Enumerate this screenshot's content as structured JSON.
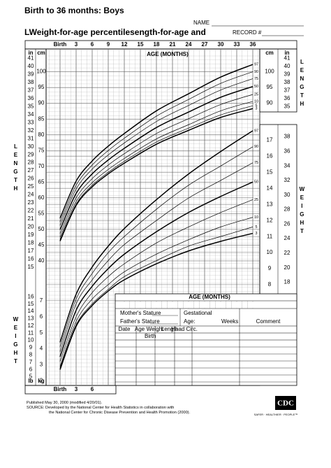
{
  "header": {
    "title": "Birth to 36 months: Boys",
    "subtitle": "LWeight-for-age percentilesength-for-age and",
    "name_label": "NAME",
    "record_label": "RECORD #"
  },
  "side_labels": {
    "length": "LENGTH",
    "weight": "WEIGHT"
  },
  "chart_data": [
    {
      "type": "line",
      "xlabel": "AGE (MONTHS)",
      "ylabel": "cm",
      "y2label": "in",
      "color": "#000000",
      "x": [
        0,
        3,
        6,
        9,
        12,
        18,
        24,
        30,
        36
      ],
      "xlim": [
        0,
        36
      ],
      "xticks": [
        {
          "value": 0,
          "label": "Birth"
        },
        3,
        6,
        9,
        12,
        15,
        18,
        21,
        24,
        27,
        30,
        33,
        36
      ],
      "ylim": [
        36,
        105
      ],
      "yticks": [
        40,
        45,
        50,
        55,
        60,
        65,
        70,
        75,
        80,
        85,
        90,
        95,
        100
      ],
      "y2lim": [
        14.2,
        41.3
      ],
      "y2ticks": [
        15,
        16,
        17,
        18,
        19,
        20,
        21,
        22,
        23,
        24,
        25,
        26,
        27,
        28,
        29,
        30,
        31,
        32,
        33,
        34,
        35,
        36,
        37,
        38,
        39,
        40,
        41
      ],
      "series": [
        {
          "name": "97",
          "values": [
            53.5,
            65.3,
            71.7,
            76.4,
            80.4,
            87.6,
            93.0,
            98.3,
            102.3
          ]
        },
        {
          "name": "90",
          "values": [
            52.3,
            64.0,
            70.4,
            75.0,
            78.9,
            85.9,
            91.2,
            96.3,
            100.0
          ]
        },
        {
          "name": "75",
          "values": [
            51.2,
            62.8,
            69.1,
            73.6,
            77.4,
            84.2,
            89.3,
            94.2,
            97.8
          ]
        },
        {
          "name": "50",
          "values": [
            49.9,
            61.4,
            67.6,
            72.0,
            75.7,
            82.3,
            87.2,
            91.9,
            95.3
          ]
        },
        {
          "name": "25",
          "values": [
            48.6,
            60.0,
            66.1,
            70.4,
            74.0,
            80.4,
            85.1,
            89.6,
            92.8
          ]
        },
        {
          "name": "10",
          "values": [
            47.5,
            58.8,
            64.8,
            69.0,
            72.5,
            78.7,
            83.2,
            87.6,
            90.6
          ]
        },
        {
          "name": "5",
          "values": [
            46.8,
            58.0,
            64.0,
            68.1,
            71.6,
            77.7,
            82.1,
            86.3,
            89.2
          ]
        },
        {
          "name": "3",
          "values": [
            46.3,
            57.6,
            63.5,
            67.6,
            71.0,
            77.0,
            81.4,
            85.5,
            88.3
          ]
        }
      ]
    },
    {
      "type": "line",
      "xlabel": "AGE (MONTHS)",
      "ylabel": "kg",
      "y2label": "lb",
      "color": "#000000",
      "x": [
        0,
        3,
        6,
        9,
        12,
        18,
        24,
        30,
        36
      ],
      "xlim": [
        0,
        36
      ],
      "xticks": [
        {
          "value": 0,
          "label": "Birth"
        },
        3,
        6,
        12,
        15,
        18,
        21,
        24,
        27,
        30,
        33,
        36
      ],
      "ylim": [
        1.8,
        17.9
      ],
      "yticks": [
        2,
        3,
        4,
        5,
        6,
        7,
        8,
        9,
        10,
        11,
        12,
        13,
        14,
        15,
        16,
        17
      ],
      "y2lim": [
        4.0,
        39.5
      ],
      "y2ticks": [
        5,
        6,
        7,
        8,
        9,
        10,
        11,
        12,
        13,
        14,
        15,
        16,
        18,
        20,
        22,
        24,
        26,
        28,
        30,
        32,
        34,
        36,
        38
      ],
      "series": [
        {
          "name": "97",
          "values": [
            4.4,
            7.4,
            9.1,
            10.4,
            11.5,
            13.3,
            14.9,
            16.3,
            17.6
          ]
        },
        {
          "name": "90",
          "values": [
            4.1,
            7.1,
            8.7,
            10.0,
            11.0,
            12.7,
            14.2,
            15.4,
            16.6
          ]
        },
        {
          "name": "75",
          "values": [
            3.8,
            6.8,
            8.3,
            9.5,
            10.5,
            12.0,
            13.4,
            14.5,
            15.6
          ]
        },
        {
          "name": "50",
          "values": [
            3.5,
            6.4,
            7.9,
            9.0,
            9.9,
            11.3,
            12.5,
            13.5,
            14.4
          ]
        },
        {
          "name": "25",
          "values": [
            3.2,
            6.0,
            7.5,
            8.5,
            9.3,
            10.6,
            11.6,
            12.5,
            13.3
          ]
        },
        {
          "name": "10",
          "values": [
            2.9,
            5.7,
            7.1,
            8.0,
            8.8,
            9.9,
            10.8,
            11.6,
            12.2
          ]
        },
        {
          "name": "5",
          "values": [
            2.8,
            5.5,
            6.8,
            7.7,
            8.5,
            9.5,
            10.4,
            11.0,
            11.6
          ]
        },
        {
          "name": "3",
          "values": [
            2.7,
            5.4,
            6.7,
            7.6,
            8.3,
            9.3,
            10.1,
            10.7,
            11.2
          ]
        }
      ]
    }
  ],
  "form": {
    "mothers_stature": "Mother's Stature",
    "fathers_stature": "Father's Stature",
    "gestational": "Gestational",
    "age": "Age:",
    "weeks": "Weeks",
    "comment": "Comment",
    "columns": [
      "Date",
      "Age",
      "Weight",
      "Length",
      "Head Circ."
    ],
    "birth": "Birth"
  },
  "footer": {
    "published": "Published May 30, 2000 (modified 4/20/01).",
    "source": "SOURCE: Developed by the National Center for Health Statistics in collaboration with",
    "source2": "the National Center for Chronic Disease Prevention and Health Promotion (2000).",
    "logo": "CDC",
    "tagline": "SAFER · HEALTHIER · PEOPLE™"
  }
}
